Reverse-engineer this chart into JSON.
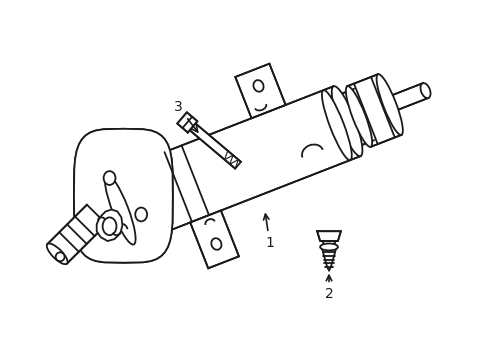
{
  "bg_color": "#ffffff",
  "line_color": "#1a1a1a",
  "lw": 1.3,
  "figsize": [
    4.89,
    3.6
  ],
  "dpi": 100,
  "label_fontsize": 10
}
